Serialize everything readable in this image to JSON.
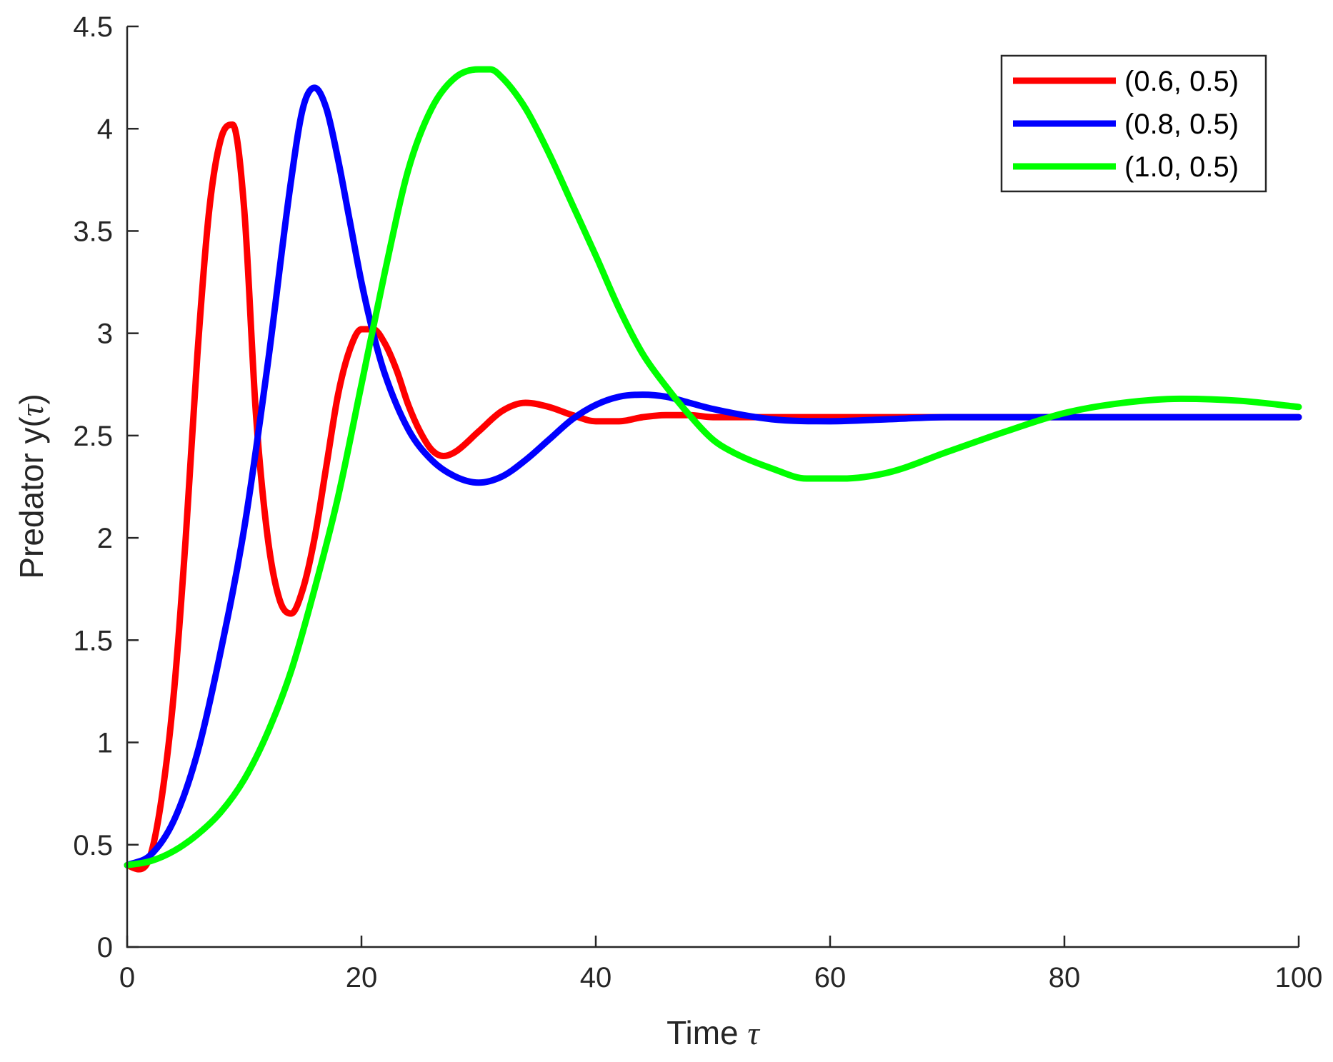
{
  "chart_data": {
    "type": "line",
    "title": "",
    "xlabel": "Time",
    "xlabel_symbol": "τ",
    "ylabel": "Predator y(",
    "ylabel_symbol": "τ",
    "ylabel_close": ")",
    "xlim": [
      0,
      100
    ],
    "ylim": [
      0,
      4.5
    ],
    "xticks": [
      0,
      20,
      40,
      60,
      80,
      100
    ],
    "xtick_labels": [
      "0",
      "20",
      "40",
      "60",
      "80",
      "100"
    ],
    "yticks": [
      0,
      0.5,
      1,
      1.5,
      2,
      2.5,
      3,
      3.5,
      4,
      4.5
    ],
    "ytick_labels": [
      "0",
      "0.5",
      "1",
      "1.5",
      "2",
      "2.5",
      "3",
      "3.5",
      "4",
      "4.5"
    ],
    "grid": false,
    "legend_position": "top-right",
    "series": [
      {
        "name": "(0.6, 0.5)",
        "color": "#ff0000",
        "x": [
          0,
          1,
          2,
          3,
          4,
          5,
          6,
          7,
          8,
          9,
          10,
          11,
          12,
          13,
          14,
          15,
          16,
          17,
          18,
          19,
          20,
          21,
          22,
          23,
          24,
          25,
          26,
          27,
          28,
          30,
          32,
          34,
          36,
          38,
          40,
          42,
          44,
          46,
          48,
          50,
          55,
          60,
          70,
          80,
          90,
          100
        ],
        "y": [
          0.4,
          0.38,
          0.45,
          0.75,
          1.25,
          2.0,
          2.9,
          3.6,
          3.95,
          4.02,
          3.6,
          2.6,
          2.0,
          1.7,
          1.63,
          1.75,
          2.0,
          2.35,
          2.7,
          2.92,
          3.02,
          3.02,
          2.95,
          2.82,
          2.65,
          2.52,
          2.43,
          2.4,
          2.42,
          2.52,
          2.62,
          2.66,
          2.64,
          2.6,
          2.57,
          2.57,
          2.59,
          2.6,
          2.6,
          2.59,
          2.59,
          2.59,
          2.59,
          2.59,
          2.59,
          2.59
        ]
      },
      {
        "name": "(0.8, 0.5)",
        "color": "#0000ff",
        "x": [
          0,
          2,
          4,
          6,
          8,
          10,
          12,
          14,
          15,
          16,
          17,
          18,
          19,
          20,
          21,
          22,
          24,
          26,
          28,
          30,
          32,
          34,
          36,
          38,
          40,
          42,
          44,
          46,
          48,
          50,
          55,
          60,
          65,
          70,
          80,
          90,
          100
        ],
        "y": [
          0.4,
          0.45,
          0.62,
          0.95,
          1.45,
          2.05,
          2.85,
          3.75,
          4.1,
          4.2,
          4.1,
          3.85,
          3.55,
          3.25,
          3.0,
          2.8,
          2.53,
          2.38,
          2.3,
          2.27,
          2.3,
          2.38,
          2.48,
          2.58,
          2.65,
          2.69,
          2.7,
          2.69,
          2.66,
          2.63,
          2.58,
          2.57,
          2.58,
          2.59,
          2.59,
          2.59,
          2.59
        ]
      },
      {
        "name": "(1.0, 0.5)",
        "color": "#00ff00",
        "x": [
          0,
          2,
          4,
          6,
          8,
          10,
          12,
          14,
          16,
          18,
          20,
          22,
          24,
          26,
          28,
          30,
          31,
          32,
          34,
          36,
          38,
          40,
          42,
          44,
          46,
          48,
          50,
          52,
          55,
          58,
          61,
          65,
          70,
          75,
          80,
          85,
          90,
          95,
          100
        ],
        "y": [
          0.4,
          0.42,
          0.47,
          0.55,
          0.66,
          0.82,
          1.05,
          1.35,
          1.75,
          2.2,
          2.75,
          3.3,
          3.8,
          4.1,
          4.25,
          4.29,
          4.29,
          4.25,
          4.1,
          3.88,
          3.63,
          3.38,
          3.12,
          2.9,
          2.74,
          2.6,
          2.48,
          2.41,
          2.34,
          2.29,
          2.29,
          2.32,
          2.42,
          2.52,
          2.61,
          2.66,
          2.68,
          2.67,
          2.64
        ]
      }
    ]
  }
}
